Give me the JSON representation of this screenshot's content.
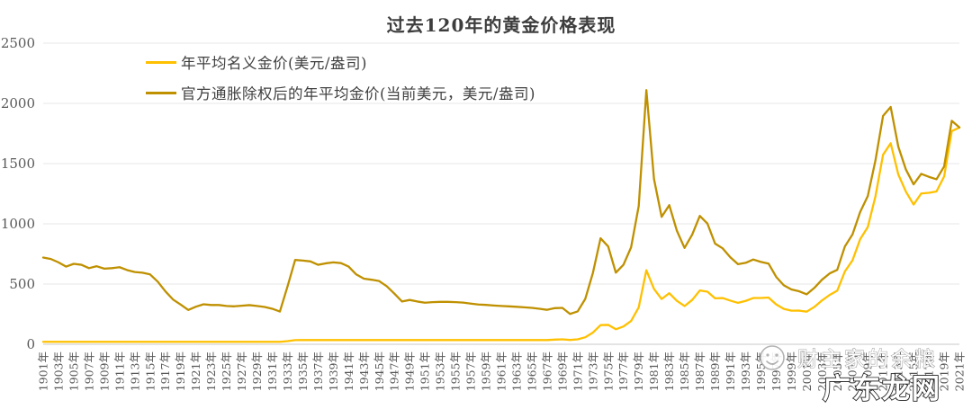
{
  "title": "过去120年的黄金价格表现",
  "legend": [
    {
      "label": "年平均名义金价(美元/盎司)",
      "color": "#FFC000"
    },
    {
      "label": "官方通胀除权后的年平均金价(当前美元，美元/盎司)",
      "color": "#BF9000"
    }
  ],
  "watermark": {
    "account": "财主家的余粮",
    "site": "广东龙网"
  },
  "axis_colors": {
    "tick_label": "#595959",
    "gridline": "#e7e7e7",
    "baseline": "#c9c9c9"
  },
  "chart_data": {
    "type": "line",
    "title": "过去120年的黄金价格表现",
    "xlabel": "",
    "ylabel": "",
    "x_start": 1901,
    "x_end": 2021,
    "x_tick_interval": 2,
    "x_tick_suffix": "年",
    "ylim": [
      0,
      2500
    ],
    "y_ticks": [
      0,
      500,
      1000,
      1500,
      2000,
      2500
    ],
    "grid": true,
    "legend_position": "top-left",
    "series": [
      {
        "name": "年平均名义金价(美元/盎司)",
        "color": "#FFC000",
        "values": [
          20.7,
          20.7,
          20.7,
          20.7,
          20.7,
          20.7,
          20.7,
          20.7,
          20.7,
          20.7,
          20.7,
          20.7,
          20.7,
          20.7,
          20.7,
          20.7,
          20.7,
          20.7,
          20.7,
          20.7,
          20.7,
          20.7,
          20.7,
          20.7,
          20.7,
          20.7,
          20.7,
          20.7,
          20.7,
          20.7,
          20.7,
          20.7,
          26.3,
          34.7,
          35,
          35,
          35,
          35,
          35,
          35,
          35,
          35,
          35,
          35,
          35,
          35,
          35,
          35,
          35,
          35,
          35,
          35,
          35,
          35,
          35,
          35,
          35,
          35,
          35,
          35,
          35,
          35,
          35,
          35,
          35,
          35,
          35,
          38.7,
          41.1,
          35.9,
          40.8,
          58.2,
          97.2,
          159.3,
          161.0,
          124.8,
          147.7,
          193.2,
          306.7,
          614.5,
          459.6,
          375.8,
          424.0,
          360.8,
          317.3,
          367.9,
          446.5,
          436.9,
          381.3,
          383.7,
          362.3,
          343.9,
          360.0,
          384.2,
          384.1,
          387.9,
          331.1,
          294.1,
          278.9,
          279.3,
          271.1,
          310.1,
          363.5,
          409.5,
          444.9,
          604.3,
          696.7,
          872.4,
          973.0,
          1226.7,
          1573.2,
          1668.9,
          1409.5,
          1266.1,
          1160.1,
          1251.9,
          1257.5,
          1268.5,
          1392.6,
          1770.3,
          1798.9
        ]
      },
      {
        "name": "官方通胀除权后的年平均金价(当前美元，美元/盎司)",
        "color": "#BF9000",
        "values": [
          720,
          708,
          680,
          645,
          668,
          660,
          632,
          648,
          628,
          632,
          640,
          616,
          600,
          594,
          580,
          520,
          440,
          372,
          330,
          285,
          312,
          332,
          326,
          326,
          318,
          315,
          320,
          325,
          318,
          310,
          295,
          272,
          480,
          700,
          695,
          688,
          660,
          672,
          680,
          674,
          645,
          580,
          545,
          536,
          525,
          482,
          420,
          355,
          368,
          355,
          345,
          350,
          352,
          352,
          350,
          346,
          338,
          330,
          327,
          322,
          318,
          315,
          311,
          307,
          302,
          295,
          286,
          300,
          302,
          252,
          273,
          377,
          593,
          880,
          812,
          595,
          660,
          805,
          1148,
          2110,
          1372,
          1058,
          1155,
          942,
          800,
          910,
          1066,
          1002,
          836,
          796,
          722,
          665,
          676,
          704,
          684,
          670,
          560,
          490,
          455,
          440,
          415,
          468,
          536,
          588,
          618,
          812,
          912,
          1098,
          1230,
          1525,
          1896,
          1970,
          1640,
          1450,
          1328,
          1415,
          1390,
          1370,
          1476,
          1855,
          1800
        ]
      }
    ]
  }
}
